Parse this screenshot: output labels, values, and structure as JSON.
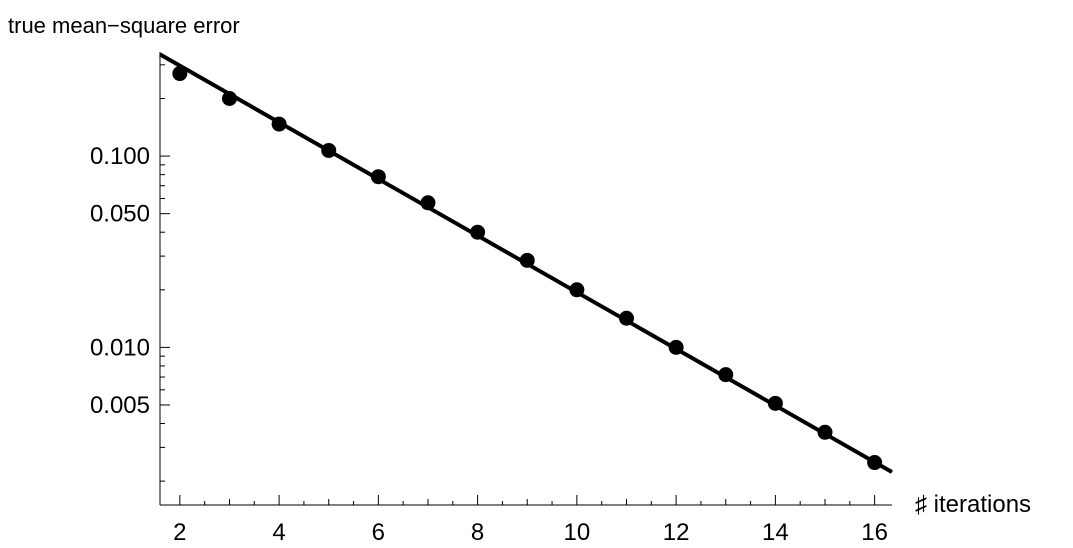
{
  "chart_data": {
    "type": "scatter",
    "title": "",
    "xlabel": "♯ iterations",
    "ylabel": "true mean−square error",
    "y_scale": "log",
    "xlim": [
      1.6,
      16.35
    ],
    "ylim": [
      0.0015,
      0.35
    ],
    "x_ticks_major": [
      2,
      4,
      6,
      8,
      10,
      12,
      14,
      16
    ],
    "x_tick_labels": [
      "2",
      "4",
      "6",
      "8",
      "10",
      "12",
      "14",
      "16"
    ],
    "y_ticks_major": [
      0.1,
      0.05,
      0.01,
      0.005
    ],
    "y_tick_labels": [
      "0.100",
      "0.050",
      "0.010",
      "0.005"
    ],
    "grid": false,
    "series": [
      {
        "x": [
          2,
          3,
          4,
          5,
          6,
          7,
          8,
          9,
          10,
          11,
          12,
          13,
          14,
          15,
          16
        ],
        "y": [
          0.27,
          0.2,
          0.147,
          0.107,
          0.078,
          0.057,
          0.04,
          0.0285,
          0.02,
          0.0142,
          0.01,
          0.0072,
          0.0051,
          0.0036,
          0.0025
        ]
      }
    ],
    "fit_line": {
      "x": [
        1.6,
        16.35
      ],
      "y": [
        0.34,
        0.00223
      ]
    },
    "colors": {
      "points": "#000000",
      "line": "#000000",
      "axis": "#000000"
    }
  }
}
